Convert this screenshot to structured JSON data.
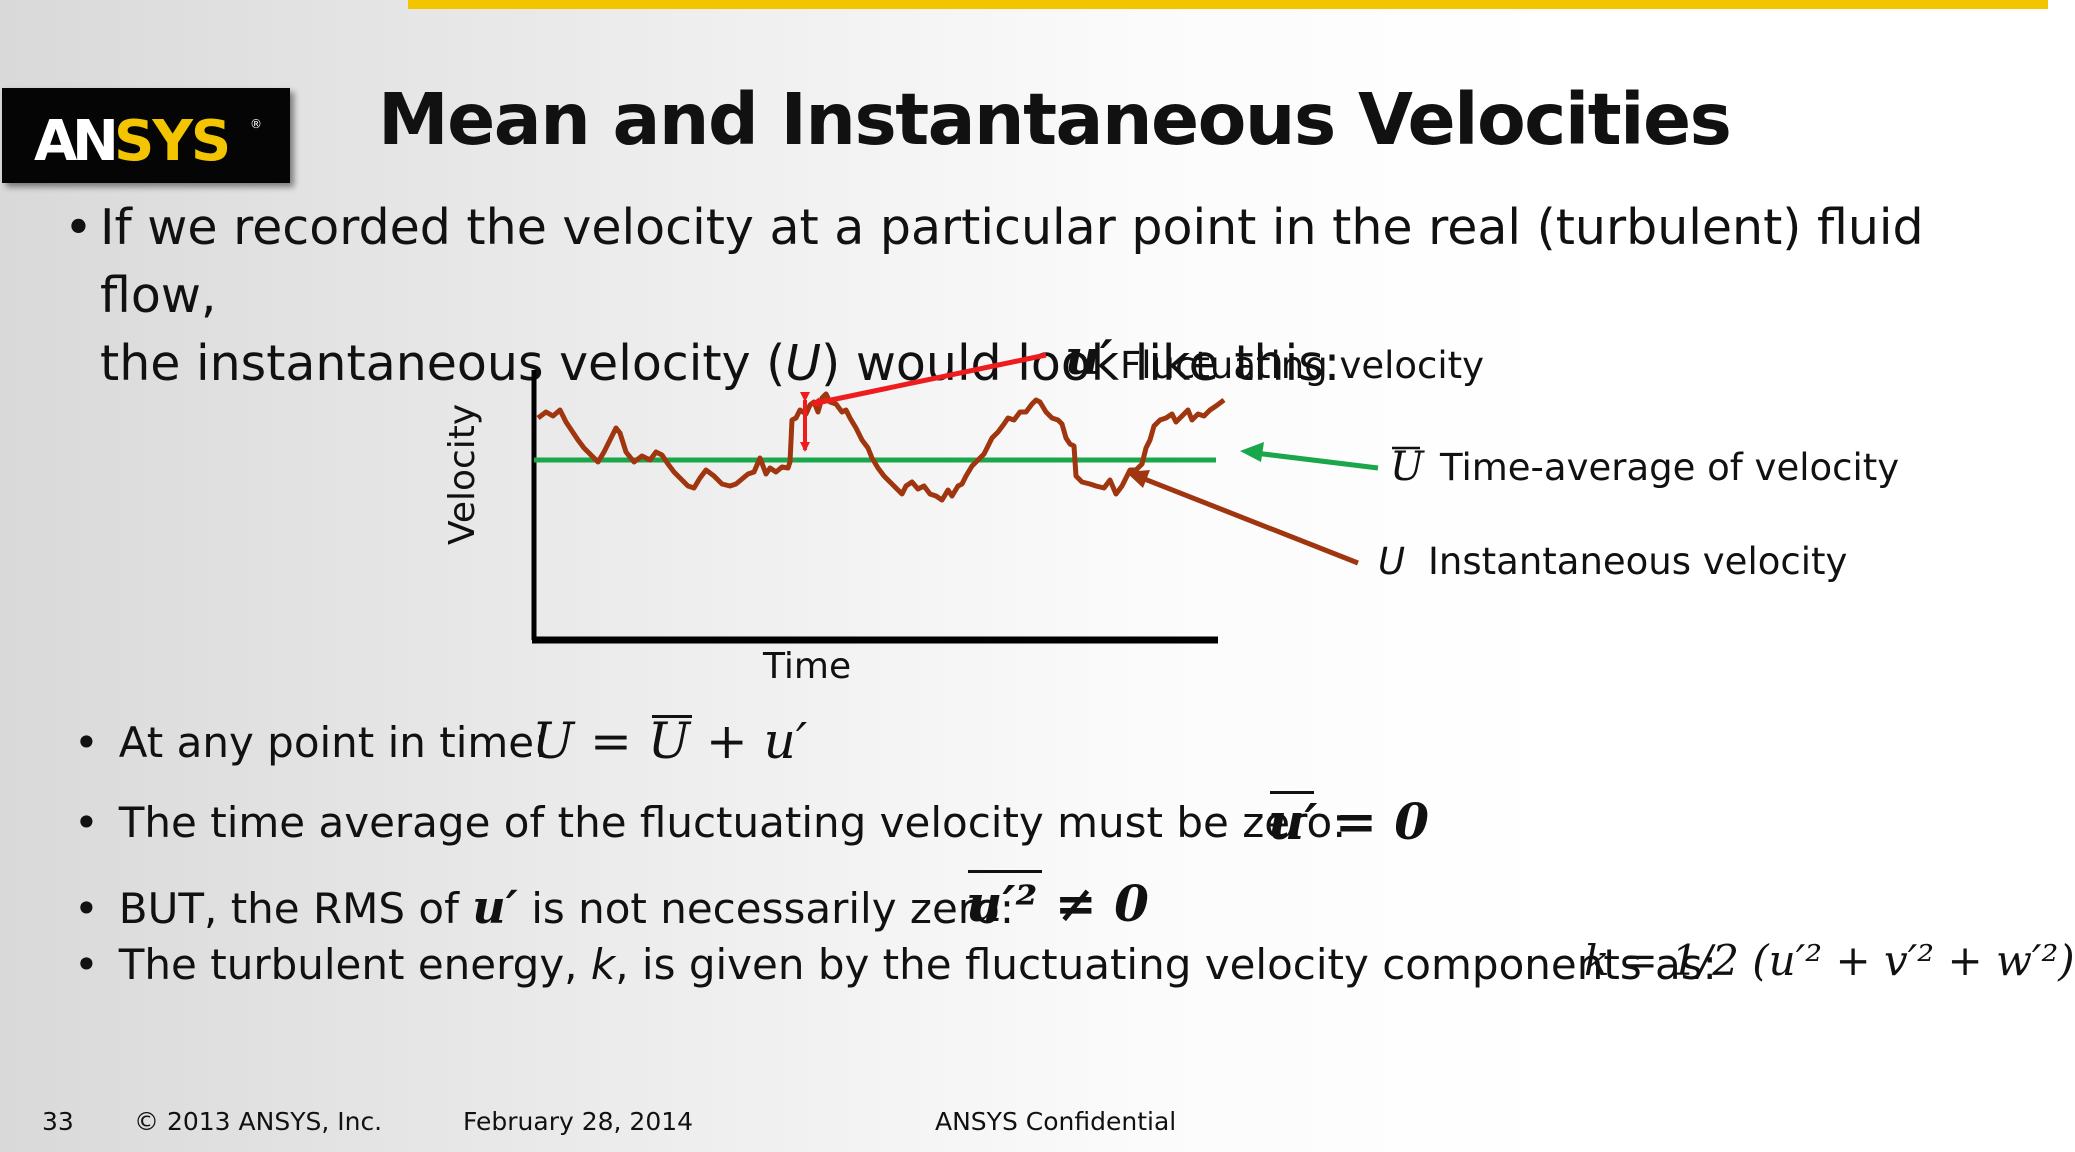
{
  "slide": {
    "title": "Mean and Instantaneous Velocities",
    "brand": "ANSYS",
    "intro_line1": "If we recorded the velocity at a particular point in the real (turbulent) fluid flow,",
    "intro_line2_pre": "the instantaneous velocity (",
    "intro_line2_var": "U",
    "intro_line2_post": ") would look like this:",
    "bullets": {
      "b1": "At any point in time:",
      "b2": "The time average of the fluctuating velocity must be zero:",
      "b3_pre": "BUT, the RMS of",
      "b3_post": "is not necessarily zero:",
      "b4_pre": "The turbulent energy,",
      "b4_var": "k",
      "b4_post": ", is given by the fluctuating velocity components as:"
    }
  },
  "figure": {
    "ylabel": "Velocity",
    "xlabel": "Time",
    "fluct_symbol": "u′",
    "fluct_label": "Fluctuating velocity",
    "mean_symbol": "U",
    "mean_label": "Time-average of velocity",
    "inst_symbol": "U",
    "inst_label": "Instantaneous velocity",
    "colors": {
      "instantaneous": "#a0360f",
      "mean": "#1aa64a",
      "fluctuation": "#ee1c1c",
      "axes": "#000000"
    }
  },
  "equations": {
    "eq1": "U = U + u′",
    "eq2": "u′ = 0",
    "eq3": "u′² ≠ 0",
    "eq4": "k = 1/2 (u′² + v′² + w′²)"
  },
  "footer": {
    "page": "33",
    "copyright": "© 2013 ANSYS, Inc.",
    "date": "February 28, 2014",
    "confidential": "ANSYS Confidential"
  }
}
